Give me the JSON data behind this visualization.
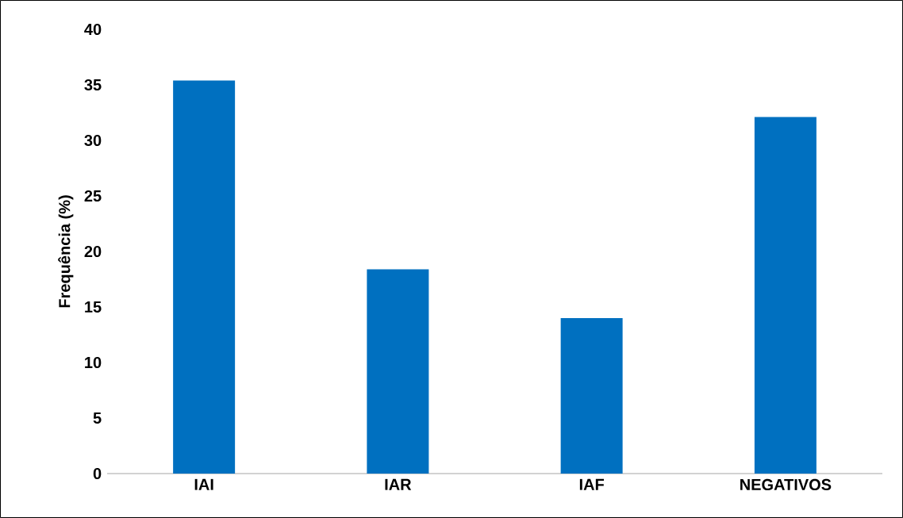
{
  "chart_data": {
    "type": "bar",
    "ylabel": "Frequência (%)",
    "categories": [
      "IAI",
      "IAR",
      "IAF",
      "NEGATIVOS"
    ],
    "values": [
      35.4,
      18.4,
      14.0,
      32.1
    ],
    "color": "#0070c0",
    "ylim": [
      0,
      40
    ],
    "yticks": [
      0,
      5,
      10,
      15,
      20,
      25,
      30,
      35,
      40
    ]
  }
}
